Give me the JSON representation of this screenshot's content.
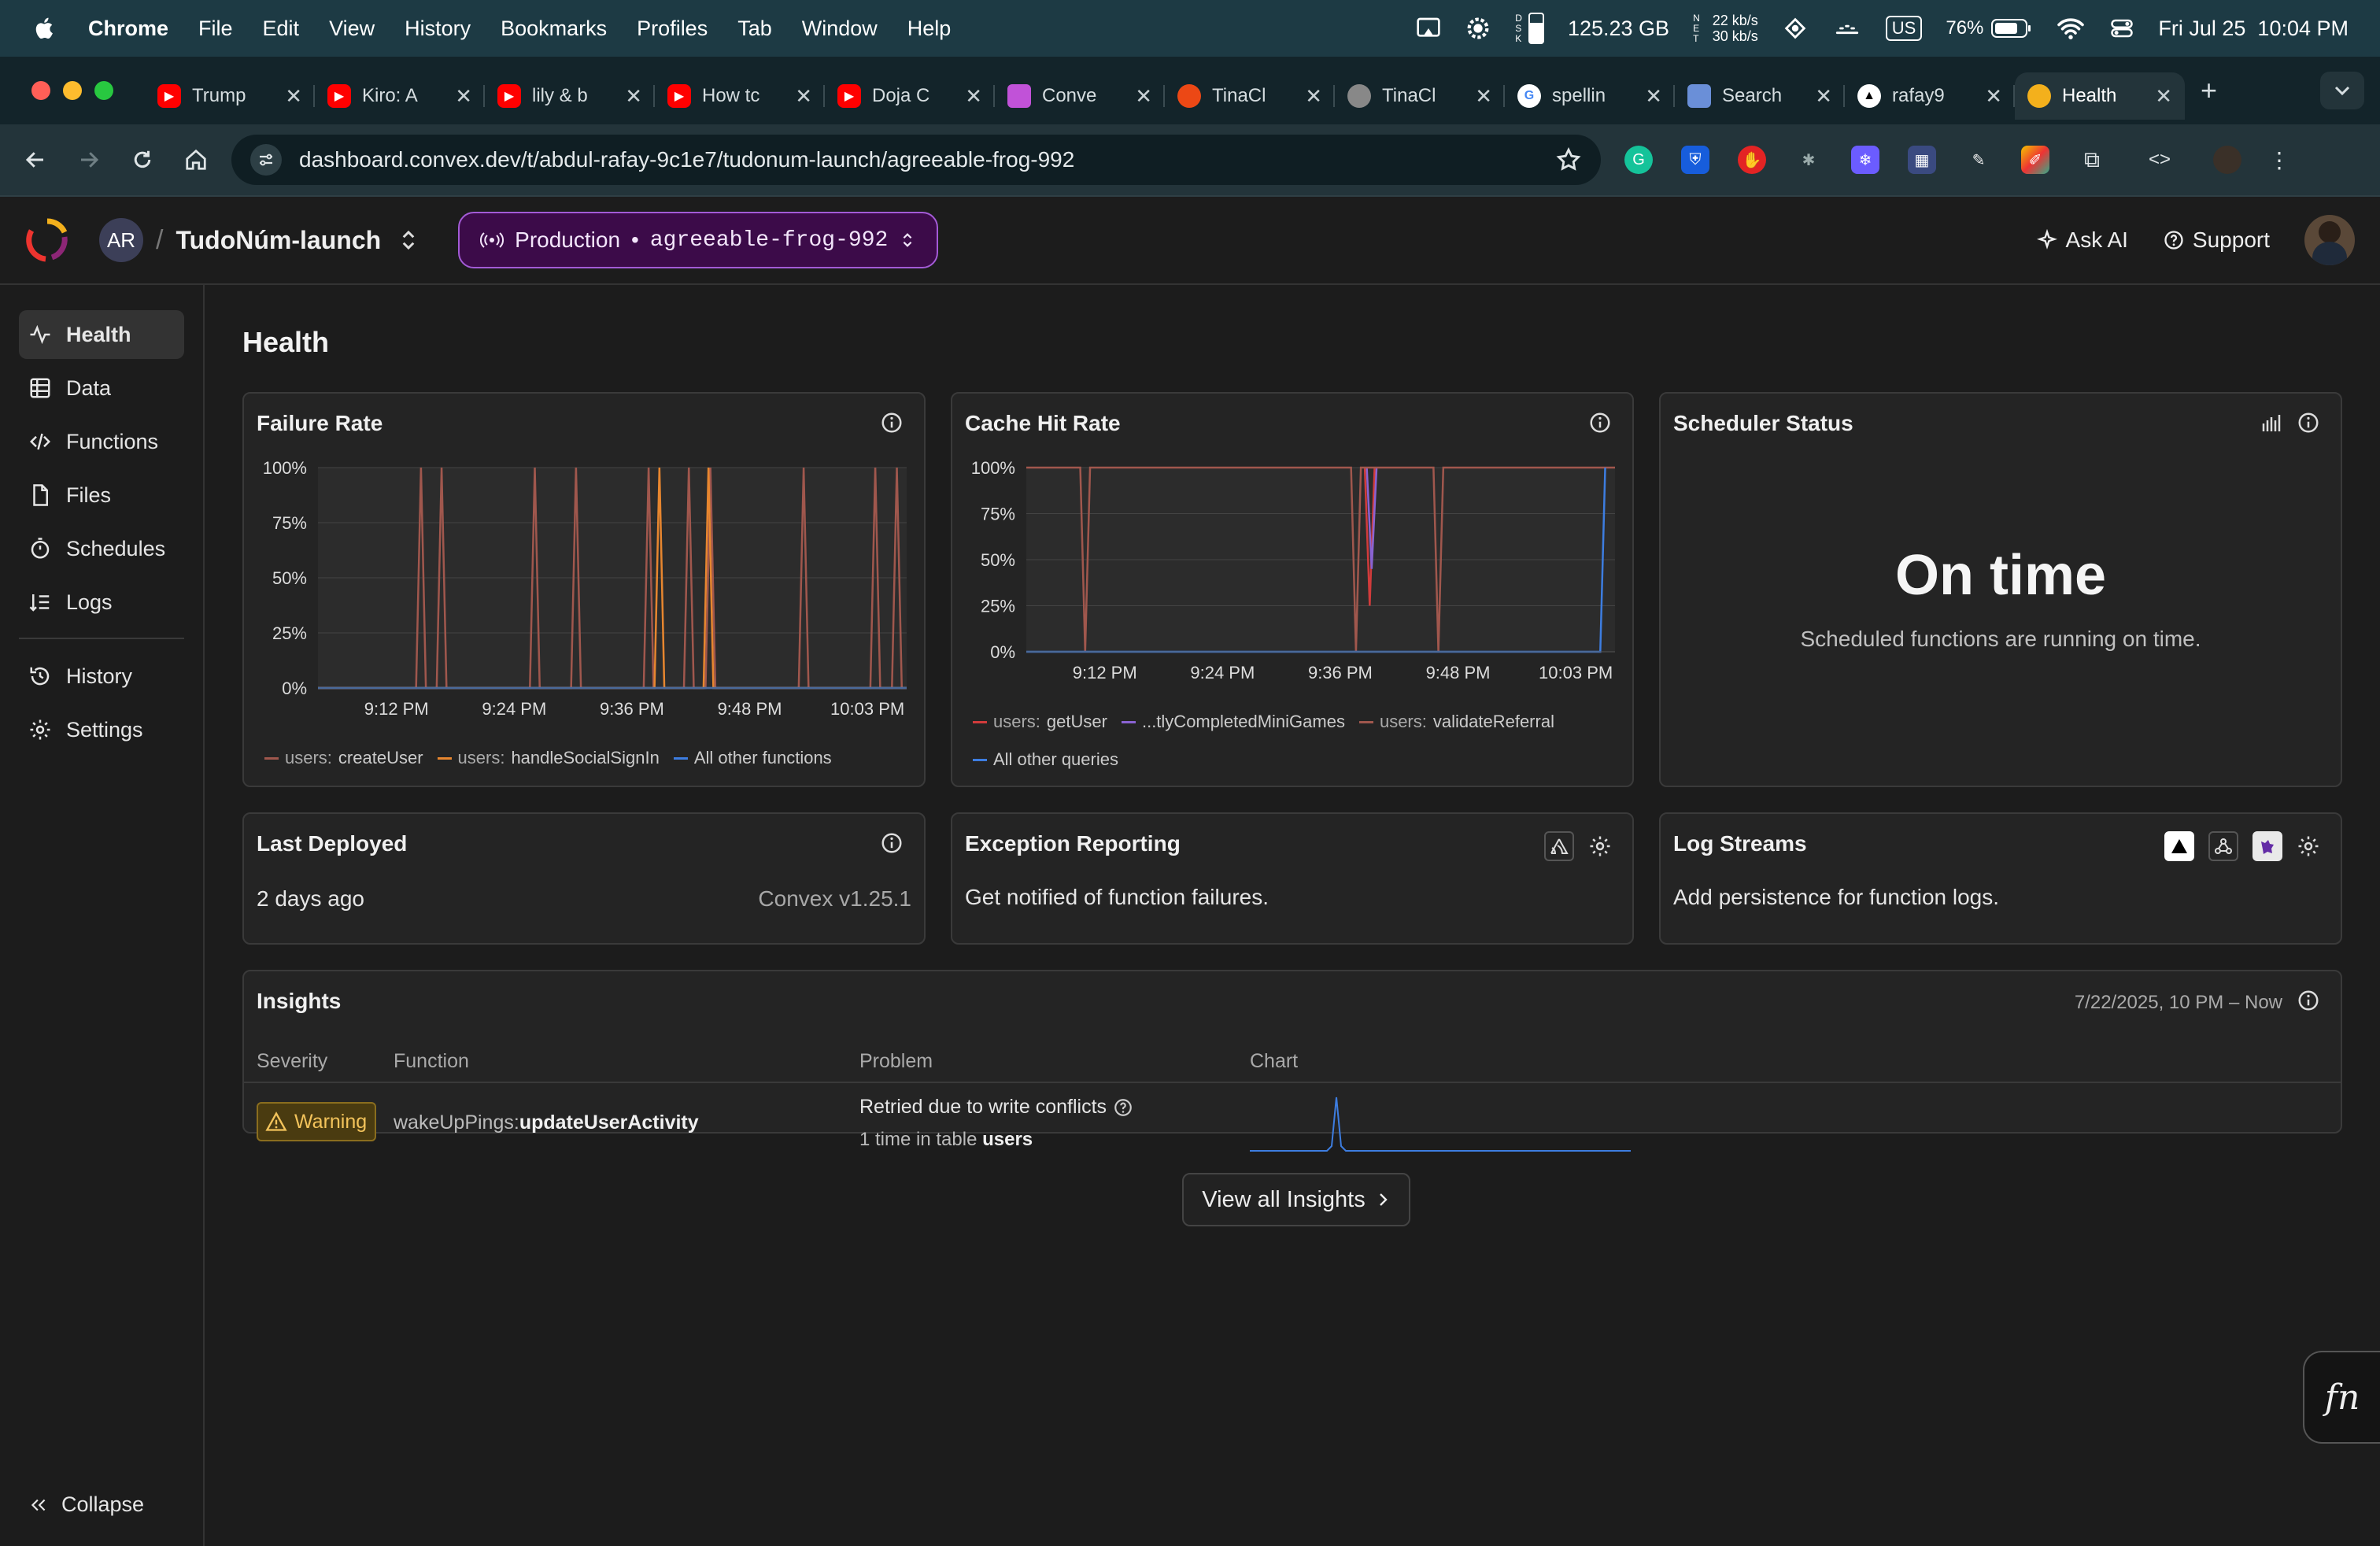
{
  "menubar": {
    "app": "Chrome",
    "items": [
      "File",
      "Edit",
      "View",
      "History",
      "Bookmarks",
      "Profiles",
      "Tab",
      "Window",
      "Help"
    ],
    "disk_letters": "D\nS\nK",
    "storage": "125.23 GB",
    "net_letters": "N\nE\nT",
    "net_up": "22 kb/s",
    "net_down": "30 kb/s",
    "input_source": "US",
    "battery": "76%",
    "datetime": "Fri Jul 25  10:04 PM"
  },
  "tabs": [
    {
      "label": "Trump",
      "favicon": "youtube-icon",
      "color": "#ff0000"
    },
    {
      "label": "Kiro: A",
      "favicon": "youtube-icon",
      "color": "#ff0000"
    },
    {
      "label": "lily & b",
      "favicon": "youtube-icon",
      "color": "#ff0000"
    },
    {
      "label": "How tc",
      "favicon": "youtube-icon",
      "color": "#ff0000"
    },
    {
      "label": "Doja C",
      "favicon": "youtube-icon",
      "color": "#ff0000"
    },
    {
      "label": "Conve",
      "favicon": "chat-icon",
      "color": "#c152d8"
    },
    {
      "label": "TinaCl",
      "favicon": "tina-icon",
      "color": "#ec4815"
    },
    {
      "label": "TinaCl",
      "favicon": "globe-icon",
      "color": "#888888"
    },
    {
      "label": "spellin",
      "favicon": "google-icon",
      "color": "#ffffff"
    },
    {
      "label": "Search",
      "favicon": "search-site-icon",
      "color": "#6a8fd8"
    },
    {
      "label": "rafay9",
      "favicon": "triangle-icon",
      "color": "#000000"
    },
    {
      "label": "Health",
      "favicon": "convex-icon",
      "color": "#f3b01c",
      "active": true
    }
  ],
  "address": {
    "url": "dashboard.convex.dev/t/abdul-rafay-9c1e7/tudonum-launch/agreeable-frog-992"
  },
  "header": {
    "team_initials": "AR",
    "project": "TudoNúm-launch",
    "deployment_type": "Production",
    "deployment_name": "agreeable-frog-992",
    "ask_ai": "Ask AI",
    "support": "Support"
  },
  "sidebar": {
    "items": [
      {
        "label": "Health",
        "icon": "health-icon",
        "active": true
      },
      {
        "label": "Data",
        "icon": "table-icon"
      },
      {
        "label": "Functions",
        "icon": "code-icon"
      },
      {
        "label": "Files",
        "icon": "file-icon"
      },
      {
        "label": "Schedules",
        "icon": "timer-icon"
      },
      {
        "label": "Logs",
        "icon": "logs-icon"
      },
      {
        "label": "History",
        "icon": "history-icon"
      },
      {
        "label": "Settings",
        "icon": "gear-icon"
      }
    ],
    "collapse": "Collapse"
  },
  "page": {
    "title": "Health"
  },
  "failure_rate": {
    "title": "Failure Rate"
  },
  "cache_hit_rate": {
    "title": "Cache Hit Rate"
  },
  "scheduler": {
    "title": "Scheduler Status",
    "status": "On time",
    "subtitle": "Scheduled functions are running on time."
  },
  "last_deployed": {
    "title": "Last Deployed",
    "value": "2 days ago",
    "version": "Convex v1.25.1"
  },
  "exception": {
    "title": "Exception Reporting",
    "text": "Get notified of function failures."
  },
  "log_streams": {
    "title": "Log Streams",
    "text": "Add persistence for function logs."
  },
  "insights": {
    "title": "Insights",
    "range": "7/22/2025, 10 PM – Now",
    "headers": {
      "severity": "Severity",
      "function": "Function",
      "problem": "Problem",
      "chart": "Chart"
    },
    "row": {
      "severity": "Warning",
      "fn_prefix": "wakeUpPings:",
      "fn_name": "updateUserActivity",
      "problem": "Retried due to write conflicts",
      "detail_prefix": "1 time in table ",
      "detail_table": "users"
    },
    "view_all": "View all Insights"
  },
  "fn_button": "fn",
  "chart_data": [
    {
      "type": "line",
      "title": "Failure Rate",
      "x_ticks": [
        "9:12 PM",
        "9:24 PM",
        "9:36 PM",
        "9:48 PM",
        "10:03 PM"
      ],
      "y_ticks": [
        "100%",
        "75%",
        "50%",
        "25%",
        "0%"
      ],
      "ylim": [
        0,
        100
      ],
      "x_range": [
        0,
        60
      ],
      "legend": "bottom",
      "series": [
        {
          "name": "users:createUser",
          "prefix": "users:",
          "suffix": "createUser",
          "color": "#a0574d",
          "spikes": [
            10.5,
            12.6,
            22.1,
            26.3,
            33.7,
            37.8,
            40.0,
            49.5,
            56.8,
            59.0
          ]
        },
        {
          "name": "users:handleSocialSignIn",
          "prefix": "users:",
          "suffix": "handleSocialSignIn",
          "color": "#e7862f",
          "spikes": [
            34.8,
            39.8
          ]
        },
        {
          "name": "All other functions",
          "color": "#3d7de0",
          "baseline": 0
        }
      ]
    },
    {
      "type": "line",
      "title": "Cache Hit Rate",
      "x_ticks": [
        "9:12 PM",
        "9:24 PM",
        "9:36 PM",
        "9:48 PM",
        "10:03 PM"
      ],
      "y_ticks": [
        "100%",
        "75%",
        "50%",
        "25%",
        "0%"
      ],
      "ylim": [
        0,
        100
      ],
      "x_range": [
        0,
        60
      ],
      "legend": "bottom",
      "series": [
        {
          "name": "users:getUser",
          "prefix": "users:",
          "suffix": "getUser",
          "color": "#d13b3b",
          "dips": [
            {
              "x": 35.0,
              "y": 25
            }
          ]
        },
        {
          "name": "...tlyCompletedMiniGames",
          "color": "#8a63d2",
          "dips": [
            {
              "x": 35.2,
              "y": 45
            }
          ]
        },
        {
          "name": "users:validateReferral",
          "prefix": "users:",
          "suffix": "validateReferral",
          "color": "#a0574d",
          "baseline": 100,
          "dips": [
            {
              "x": 6.0,
              "y": 0
            },
            {
              "x": 33.6,
              "y": 0
            },
            {
              "x": 42.0,
              "y": 0
            }
          ]
        },
        {
          "name": "All other queries",
          "color": "#3d7de0",
          "baseline": 0,
          "rise_at": 59.0
        }
      ]
    }
  ]
}
